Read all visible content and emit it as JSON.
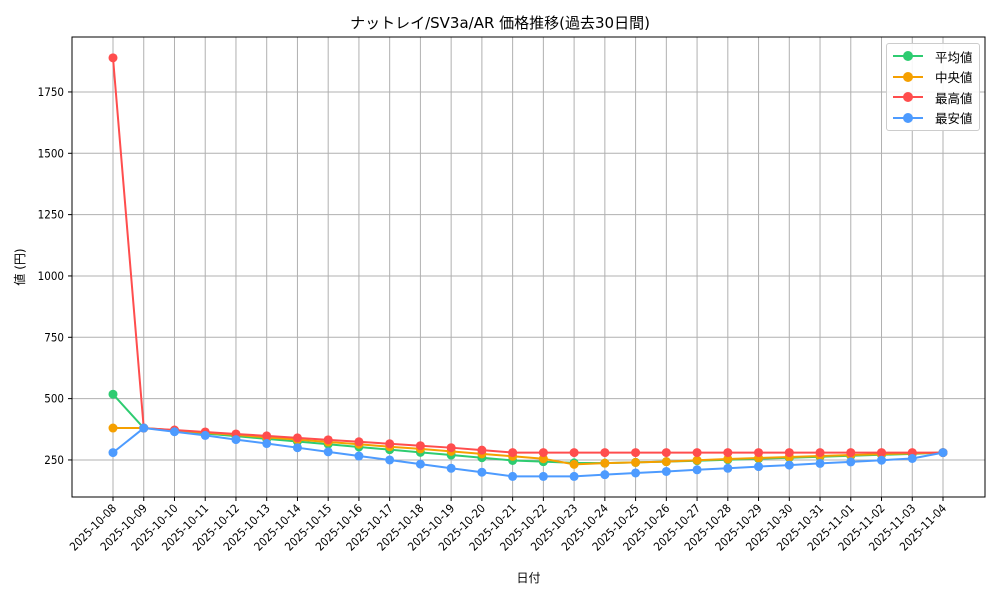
{
  "title": "ナットレイ/SV3a/AR 価格推移(過去30日間)",
  "chart_data": {
    "type": "line",
    "title": "ナットレイ/SV3a/AR 価格推移(過去30日間)",
    "xlabel": "日付",
    "ylabel": "値 (円)",
    "ylim": [
      99,
      1974
    ],
    "yticks": [
      250,
      500,
      750,
      1000,
      1250,
      1500,
      1750
    ],
    "grid": true,
    "legend_position": "upper right",
    "categories": [
      "2025-10-08",
      "2025-10-09",
      "2025-10-10",
      "2025-10-11",
      "2025-10-12",
      "2025-10-13",
      "2025-10-14",
      "2025-10-15",
      "2025-10-16",
      "2025-10-17",
      "2025-10-18",
      "2025-10-19",
      "2025-10-20",
      "2025-10-21",
      "2025-10-22",
      "2025-10-23",
      "2025-10-24",
      "2025-10-25",
      "2025-10-26",
      "2025-10-27",
      "2025-10-28",
      "2025-10-29",
      "2025-10-30",
      "2025-10-31",
      "2025-11-01",
      "2025-11-02",
      "2025-11-03",
      "2025-11-04"
    ],
    "series": [
      {
        "name": "平均値",
        "color": "#2ecc71",
        "values": [
          518,
          380,
          370,
          358,
          347,
          336,
          325,
          314,
          303,
          292,
          281,
          270,
          259,
          248,
          243,
          238,
          237,
          240,
          243,
          247,
          251,
          255,
          259,
          263,
          267,
          271,
          275,
          280
        ]
      },
      {
        "name": "中央値",
        "color": "#f5a000",
        "values": [
          380,
          380,
          371,
          361,
          352,
          342,
          333,
          323,
          314,
          304,
          295,
          285,
          275,
          265,
          255,
          232,
          237,
          240,
          243,
          249,
          254,
          258,
          262,
          266,
          270,
          274,
          277,
          280
        ]
      },
      {
        "name": "最高値",
        "color": "#ff4d4d",
        "values": [
          1889,
          380,
          372,
          364,
          356,
          348,
          340,
          332,
          324,
          316,
          308,
          300,
          290,
          280,
          280,
          280,
          280,
          280,
          280,
          280,
          280,
          280,
          280,
          280,
          280,
          280,
          280,
          280
        ]
      },
      {
        "name": "最安値",
        "color": "#4d9bff",
        "values": [
          280,
          380,
          365,
          350,
          333,
          317,
          300,
          283,
          266,
          250,
          233,
          216,
          200,
          183,
          183,
          183,
          190,
          197,
          203,
          210,
          216,
          223,
          229,
          236,
          242,
          249,
          256,
          280
        ]
      }
    ]
  }
}
